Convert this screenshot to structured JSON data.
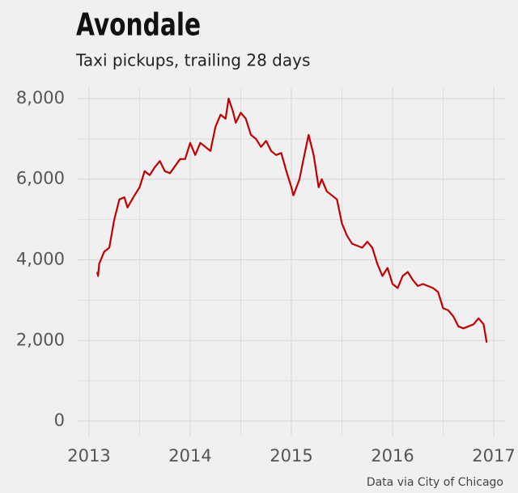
{
  "chart_data": {
    "type": "line",
    "title": "Avondale",
    "subtitle": "Taxi pickups, trailing 28 days",
    "source": "Data via City of Chicago",
    "x": [
      2013.08,
      2013.09,
      2013.1,
      2013.15,
      2013.2,
      2013.25,
      2013.3,
      2013.35,
      2013.38,
      2013.45,
      2013.5,
      2013.55,
      2013.6,
      2013.65,
      2013.7,
      2013.75,
      2013.8,
      2013.9,
      2013.95,
      2014.0,
      2014.05,
      2014.1,
      2014.15,
      2014.2,
      2014.25,
      2014.3,
      2014.35,
      2014.38,
      2014.42,
      2014.45,
      2014.5,
      2014.55,
      2014.6,
      2014.65,
      2014.7,
      2014.75,
      2014.8,
      2014.85,
      2014.9,
      2014.95,
      2015.0,
      2015.02,
      2015.08,
      2015.12,
      2015.17,
      2015.22,
      2015.27,
      2015.3,
      2015.35,
      2015.4,
      2015.45,
      2015.5,
      2015.55,
      2015.6,
      2015.65,
      2015.7,
      2015.75,
      2015.8,
      2015.85,
      2015.9,
      2015.95,
      2016.0,
      2016.05,
      2016.1,
      2016.15,
      2016.2,
      2016.25,
      2016.3,
      2016.35,
      2016.4,
      2016.45,
      2016.5,
      2016.55,
      2016.6,
      2016.65,
      2016.7,
      2016.75,
      2016.8,
      2016.85,
      2016.9,
      2016.93
    ],
    "series": [
      {
        "name": "Taxi pickups",
        "color": "#c00000",
        "values": [
          3700,
          3600,
          3900,
          4200,
          4300,
          5000,
          5500,
          5550,
          5300,
          5600,
          5800,
          6200,
          6100,
          6300,
          6450,
          6200,
          6150,
          6500,
          6500,
          6900,
          6600,
          6900,
          6800,
          6700,
          7300,
          7600,
          7500,
          8000,
          7700,
          7400,
          7650,
          7500,
          7100,
          7000,
          6800,
          6950,
          6700,
          6600,
          6650,
          6200,
          5800,
          5600,
          6000,
          6500,
          7100,
          6600,
          5800,
          6000,
          5700,
          5600,
          5500,
          4900,
          4600,
          4400,
          4350,
          4300,
          4450,
          4300,
          3900,
          3600,
          3800,
          3400,
          3300,
          3600,
          3700,
          3500,
          3350,
          3400,
          3350,
          3300,
          3200,
          2800,
          2750,
          2600,
          2350,
          2300,
          2350,
          2400,
          2550,
          2400,
          1950
        ]
      }
    ],
    "xlim": [
      2012.88,
      2017.12
    ],
    "ylim": [
      -380,
      8280
    ],
    "xticks": [
      2013,
      2014,
      2015,
      2016,
      2017
    ],
    "x_minor_ticks": [
      2013.5,
      2014.5,
      2015.5,
      2016.5
    ],
    "yticks": [
      0,
      {
        "value": 2000,
        "label": "2,000"
      },
      {
        "value": 4000,
        "label": "4,000"
      },
      {
        "value": 6000,
        "label": "6,000"
      },
      {
        "value": 8000,
        "label": "8,000"
      }
    ],
    "y_minor_ticks": [
      1000,
      3000,
      5000,
      7000
    ],
    "grid": true
  }
}
